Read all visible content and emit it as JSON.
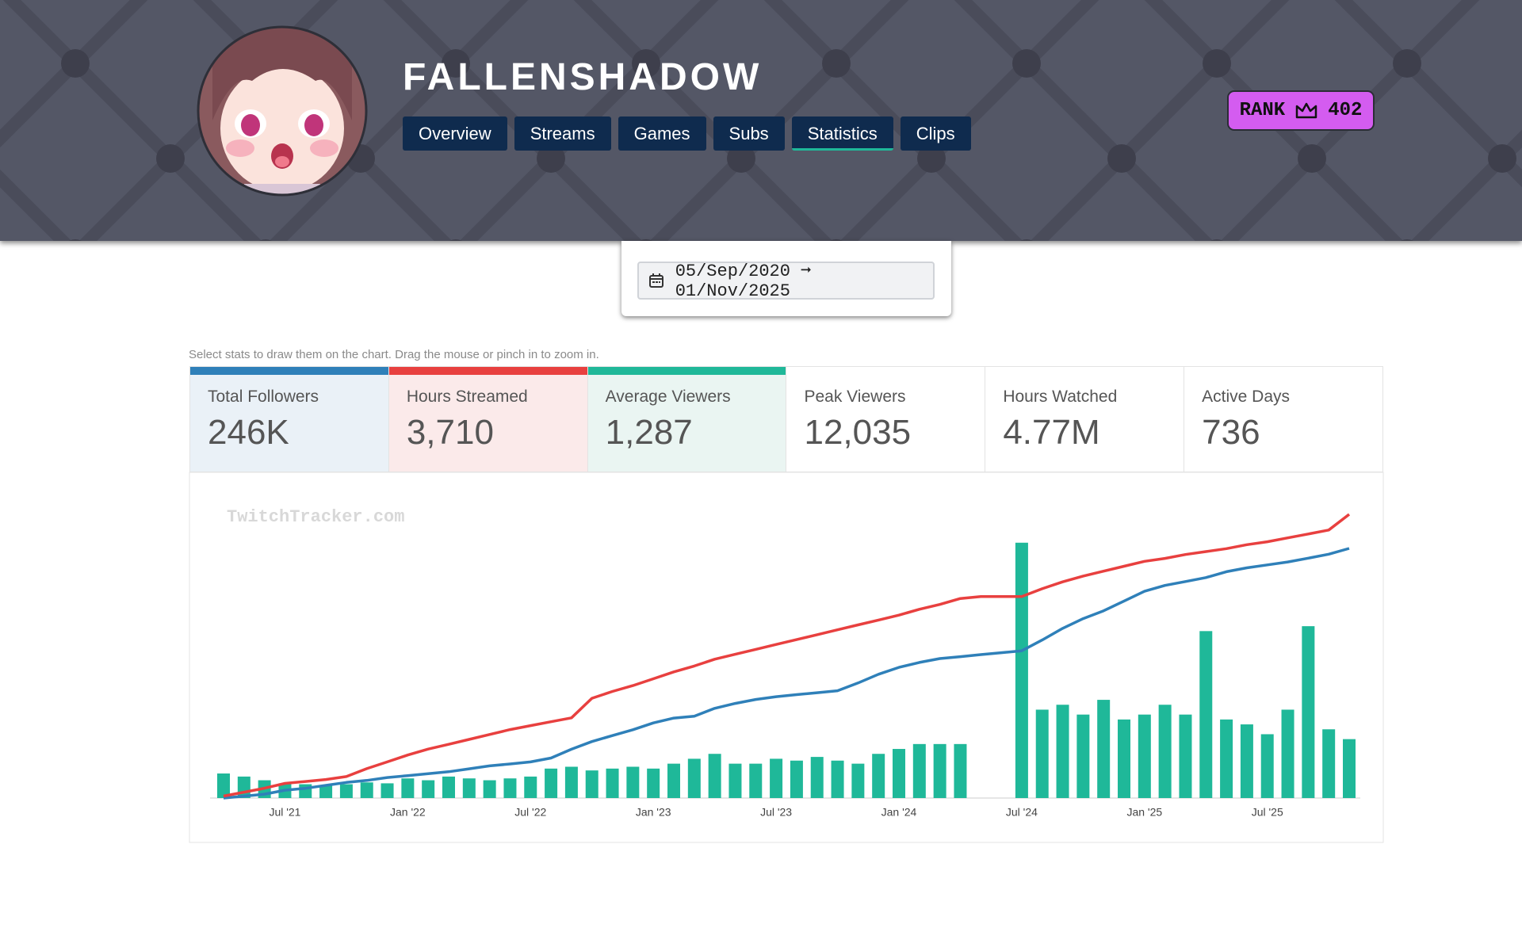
{
  "header": {
    "channel_name": "FALLENSHADOW",
    "nav": [
      "Overview",
      "Streams",
      "Games",
      "Subs",
      "Statistics",
      "Clips"
    ],
    "active_nav": 4,
    "rank": {
      "label": "RANK",
      "value": "402"
    }
  },
  "date_range": "05/Sep/2020 ➞ 01/Nov/2025",
  "hint": "Select stats to draw them on the chart. Drag the mouse or pinch in to zoom in.",
  "stats": [
    {
      "value": "246K"
    },
    {
      "value": "3,710"
    },
    {
      "value": "1,287"
    },
    {
      "label": "Peak Viewers",
      "value": "12,035"
    },
    {
      "label": "Hours Watched",
      "value": "4.77M"
    },
    {
      "label": "Active Days",
      "value": "736"
    }
  ],
  "chart_data": {
    "type": "combo",
    "watermark": "TwitchTracker.com",
    "categories": [
      null,
      null,
      null,
      "Jul '21",
      null,
      null,
      null,
      null,
      null,
      "Jan '22",
      null,
      null,
      null,
      null,
      null,
      "Jul '22",
      null,
      null,
      null,
      null,
      null,
      "Jan '23",
      null,
      null,
      null,
      null,
      null,
      "Jul '23",
      null,
      null,
      null,
      null,
      null,
      "Jan '24",
      null,
      null,
      null,
      null,
      null,
      "Jul '24",
      null,
      null,
      null,
      null,
      null,
      "Jan '25",
      null,
      null,
      null,
      null,
      null,
      "Jul '25",
      null,
      null,
      null,
      null
    ],
    "series": [
      {
        "name": "Total Followers",
        "type": "line",
        "color": "#2f80b9",
        "values": [
          0,
          1900,
          3800,
          7700,
          9600,
          12500,
          15400,
          17300,
          20200,
          22100,
          24000,
          25900,
          28800,
          31700,
          33600,
          35600,
          39400,
          48100,
          55700,
          61500,
          67300,
          74000,
          78800,
          80700,
          88400,
          93200,
          97100,
          99900,
          101900,
          103800,
          105700,
          113400,
          122000,
          128800,
          133600,
          137400,
          139300,
          141300,
          143200,
          145100,
          155700,
          167200,
          176800,
          184500,
          194100,
          203700,
          209500,
          213300,
          217200,
          223000,
          226800,
          229700,
          232600,
          236400,
          240300,
          246000
        ]
      },
      {
        "name": "Hours Streamed",
        "type": "line",
        "color": "#e8403f",
        "values": [
          26,
          77,
          128,
          192,
          217,
          243,
          281,
          384,
          473,
          563,
          640,
          703,
          767,
          831,
          895,
          947,
          998,
          1049,
          1305,
          1394,
          1471,
          1560,
          1650,
          1727,
          1816,
          1880,
          1944,
          2008,
          2072,
          2136,
          2200,
          2264,
          2328,
          2392,
          2469,
          2532,
          2609,
          2635,
          2635,
          2635,
          2737,
          2827,
          2903,
          2967,
          3031,
          3095,
          3134,
          3185,
          3223,
          3261,
          3313,
          3351,
          3402,
          3453,
          3505,
          3710
        ]
      },
      {
        "name": "Average Viewers",
        "type": "bar",
        "color": "#1fb899",
        "values": [
          800,
          700,
          580,
          480,
          450,
          420,
          450,
          510,
          480,
          640,
          580,
          700,
          640,
          580,
          640,
          700,
          960,
          1020,
          900,
          960,
          1020,
          960,
          1120,
          1280,
          1440,
          1120,
          1120,
          1280,
          1220,
          1340,
          1220,
          1120,
          1440,
          1600,
          1760,
          1760,
          1760,
          null,
          null,
          8320,
          2880,
          3040,
          2720,
          3200,
          2560,
          2720,
          3040,
          2720,
          5440,
          2560,
          2400,
          2080,
          2880,
          5600,
          2240,
          1920
        ]
      }
    ]
  }
}
